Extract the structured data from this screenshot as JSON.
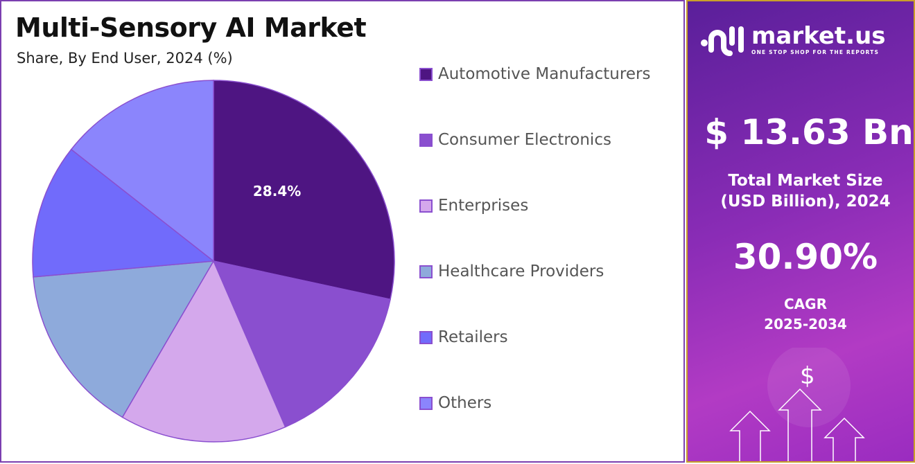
{
  "chart_data": {
    "type": "pie",
    "title": "Multi-Sensory AI Market",
    "subtitle": "Share, By End User, 2024 (%)",
    "categories": [
      "Automotive Manufacturers",
      "Consumer Electronics",
      "Enterprises",
      "Healthcare Providers",
      "Retailers",
      "Others"
    ],
    "values": [
      28.4,
      15.1,
      14.9,
      15.2,
      12.0,
      14.4
    ],
    "data_labels": [
      "28.4%",
      "",
      "",
      "",
      "",
      ""
    ],
    "colors": [
      "#4e1582",
      "#8a4fcf",
      "#d4a8ec",
      "#8eaadb",
      "#716bfb",
      "#8b85fc"
    ],
    "legend_position": "right"
  },
  "side_panel": {
    "brand": "market.us",
    "tagline": "ONE STOP SHOP FOR THE REPORTS",
    "market_size": "$ 13.63 Bn",
    "market_size_label_1": "Total Market Size",
    "market_size_label_2": "(USD Billion), 2024",
    "cagr": "30.90%",
    "cagr_label_1": "CAGR",
    "cagr_label_2": "2025-2034",
    "dollar_symbol": "$"
  }
}
